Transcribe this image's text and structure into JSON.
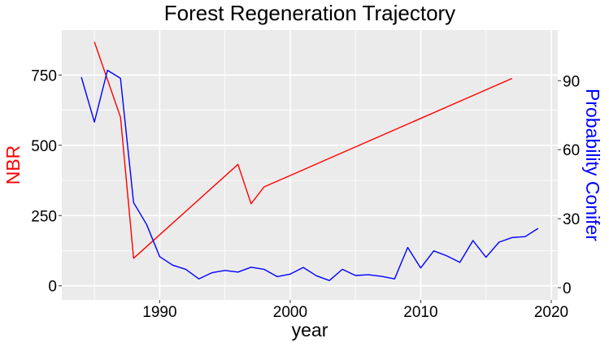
{
  "chart_data": {
    "type": "line",
    "title": "Forest Regeneration Trajectory",
    "xlabel": "year",
    "ylabel_left": "NBR",
    "ylabel_right": "Probability Conifer",
    "xlim": [
      1982.5,
      2020.5
    ],
    "ylim_left": [
      -50,
      910
    ],
    "ylim_right": [
      -5.3,
      112.0
    ],
    "x_ticks": [
      1990,
      2000,
      2010,
      2020
    ],
    "x_tick_labels": [
      "1990",
      "2000",
      "2010",
      "2020"
    ],
    "y_left_ticks": [
      0,
      250,
      500,
      750
    ],
    "y_left_tick_labels": [
      "0",
      "250",
      "500",
      "750"
    ],
    "y_right_ticks": [
      0,
      30,
      60,
      90
    ],
    "y_right_tick_labels": [
      "0",
      "30",
      "60",
      "90"
    ],
    "grid": true,
    "colors": {
      "panel_background": "#ebebeb",
      "grid_line": "#ffffff",
      "nbr": "#ff0000",
      "conifer": "#0000ff"
    },
    "series": [
      {
        "axis": "left",
        "color": "#ff0000",
        "x": [
          1985,
          1987,
          1988,
          1996,
          1997,
          1998,
          2017
        ],
        "values": [
          868,
          600,
          98,
          432,
          292,
          352,
          738
        ]
      },
      {
        "axis": "right",
        "color": "#0000ff",
        "x": [
          1984,
          1985,
          1986,
          1987,
          1988,
          1989,
          1990,
          1991,
          1992,
          1993,
          1994,
          1995,
          1996,
          1997,
          1998,
          1999,
          2000,
          2001,
          2002,
          2003,
          2004,
          2005,
          2006,
          2007,
          2008,
          2009,
          2010,
          2011,
          2012,
          2013,
          2014,
          2015,
          2016,
          2017,
          2018,
          2019
        ],
        "values": [
          91.5,
          72.0,
          94.5,
          91.0,
          37.0,
          27.5,
          13.5,
          9.8,
          8.0,
          3.8,
          6.5,
          7.5,
          6.8,
          8.9,
          8.0,
          4.8,
          5.9,
          8.8,
          5.2,
          3.1,
          8.0,
          5.3,
          5.6,
          4.9,
          3.8,
          17.5,
          8.6,
          16.0,
          13.8,
          11.0,
          20.5,
          13.2,
          19.8,
          21.8,
          22.2,
          25.8
        ]
      }
    ]
  }
}
